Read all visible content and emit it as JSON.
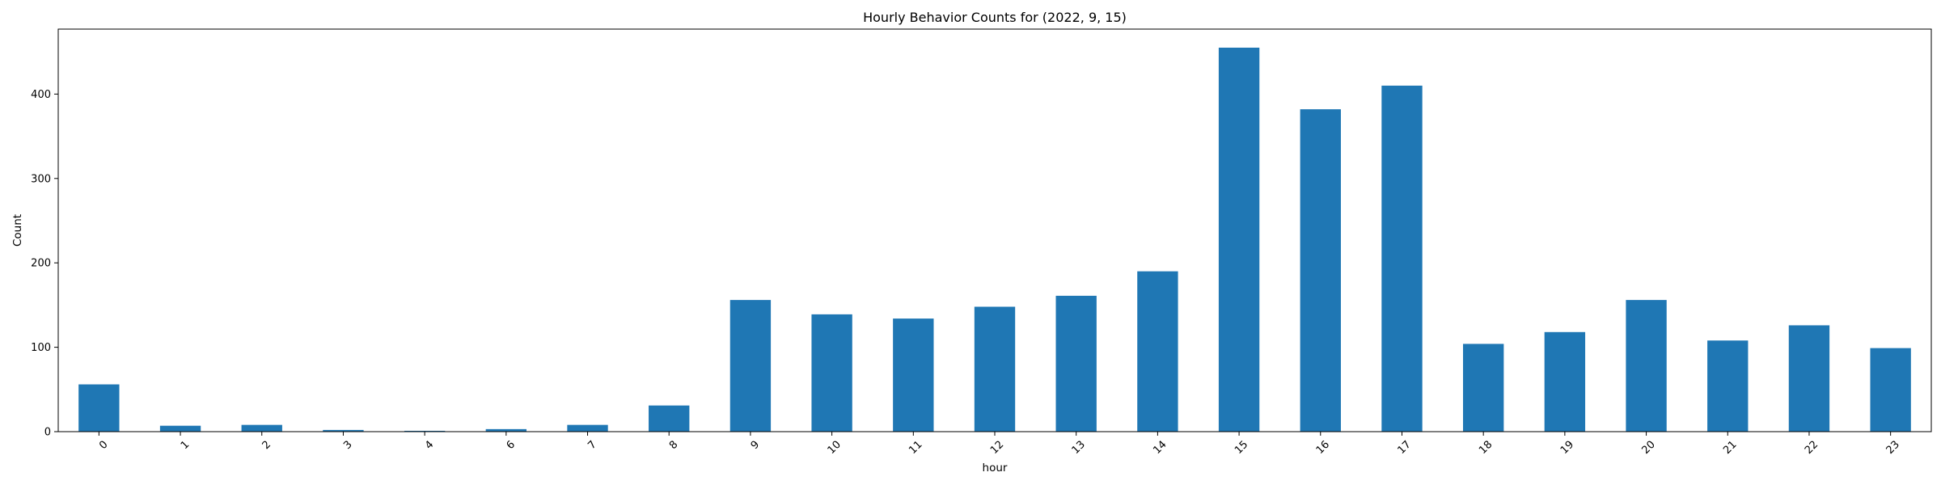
{
  "chart_data": {
    "type": "bar",
    "title": "Hourly Behavior Counts for (2022, 9, 15)",
    "xlabel": "hour",
    "ylabel": "Count",
    "categories": [
      "0",
      "1",
      "2",
      "3",
      "4",
      "6",
      "7",
      "8",
      "9",
      "10",
      "11",
      "12",
      "13",
      "14",
      "15",
      "16",
      "17",
      "18",
      "19",
      "20",
      "21",
      "22",
      "23"
    ],
    "values": [
      56,
      7,
      8,
      2,
      1,
      3,
      8,
      31,
      156,
      139,
      134,
      148,
      161,
      190,
      455,
      382,
      410,
      104,
      118,
      156,
      108,
      126,
      99
    ],
    "ylim": [
      0,
      477
    ],
    "yticks": [
      0,
      100,
      200,
      300,
      400
    ],
    "bar_color": "#1f77b4",
    "grid": false,
    "legend": "none"
  }
}
